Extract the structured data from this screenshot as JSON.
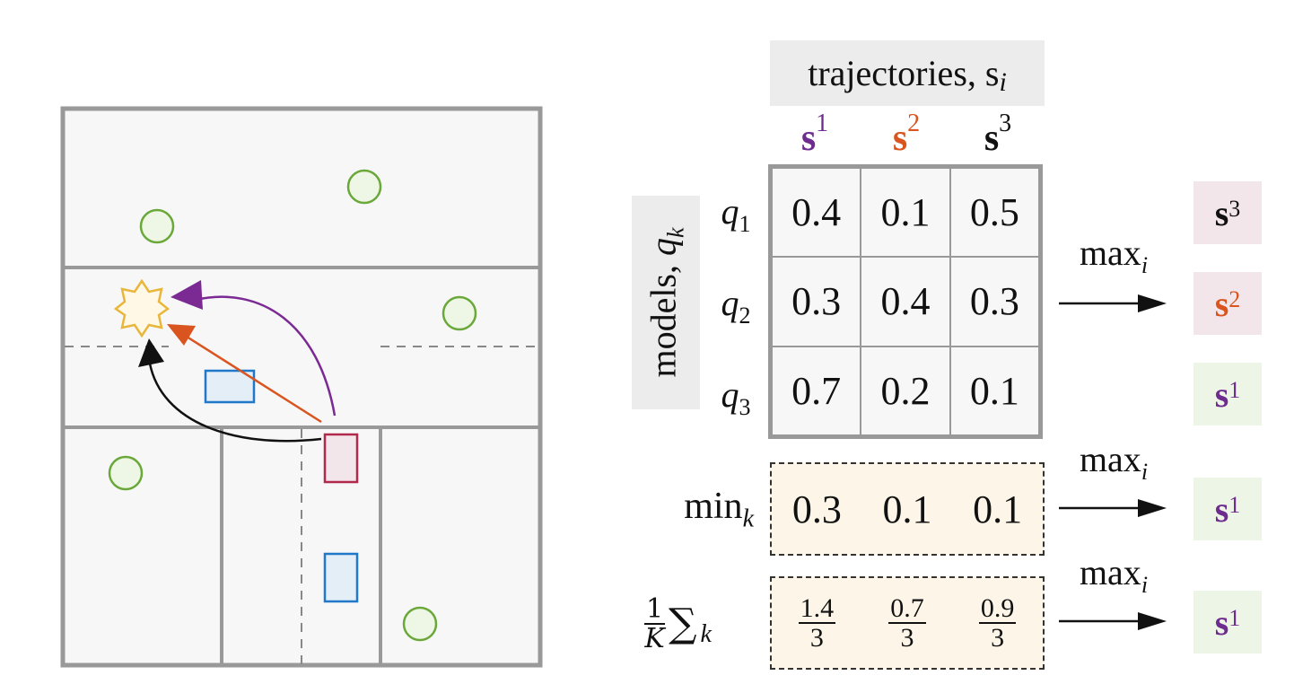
{
  "header": {
    "title": "trajectories, s",
    "sub": "i"
  },
  "columns": [
    {
      "base": "s",
      "sup": "1",
      "color": "#6e2c8e"
    },
    {
      "base": "s",
      "sup": "2",
      "color": "#d9541e"
    },
    {
      "base": "s",
      "sup": "3",
      "color": "#111111"
    }
  ],
  "models_label": {
    "text": "models, ",
    "var": "q",
    "sub": "k"
  },
  "rows": [
    {
      "var": "q",
      "sub": "1"
    },
    {
      "var": "q",
      "sub": "2"
    },
    {
      "var": "q",
      "sub": "3"
    }
  ],
  "matrix": [
    [
      "0.4",
      "0.1",
      "0.5"
    ],
    [
      "0.3",
      "0.4",
      "0.3"
    ],
    [
      "0.7",
      "0.2",
      "0.1"
    ]
  ],
  "min_row": {
    "label": "min",
    "sub": "k",
    "values": [
      "0.3",
      "0.1",
      "0.1"
    ]
  },
  "mean_row": {
    "frac_num": "1",
    "frac_den": "K",
    "sum": "∑",
    "sub": "k",
    "values": [
      {
        "num": "1.4",
        "den": "3"
      },
      {
        "num": "0.7",
        "den": "3"
      },
      {
        "num": "0.9",
        "den": "3"
      }
    ]
  },
  "max_label": {
    "text": "max",
    "sub": "i"
  },
  "results": {
    "per_model": [
      {
        "base": "s",
        "sup": "3",
        "color": "#111111",
        "bg": "#f3e6ea"
      },
      {
        "base": "s",
        "sup": "2",
        "color": "#d9541e",
        "bg": "#f3e6ea"
      },
      {
        "base": "s",
        "sup": "1",
        "color": "#6e2c8e",
        "bg": "#edf5e6"
      }
    ],
    "min": {
      "base": "s",
      "sup": "1",
      "color": "#6e2c8e",
      "bg": "#edf5e6"
    },
    "mean": {
      "base": "s",
      "sup": "1",
      "color": "#6e2c8e",
      "bg": "#edf5e6"
    }
  },
  "colors": {
    "wall": "#999999",
    "floor": "#f7f7f7",
    "goal_circle": "#6aa83a",
    "goal_fill": "#eef6e6",
    "obstacle_stroke": "#1f78c8",
    "obstacle_fill": "#e3eef7",
    "ego_stroke": "#b0284a",
    "ego_fill": "#f3e6ea",
    "star_stroke": "#e8b63a",
    "star_fill": "#fff8e6",
    "traj1": "#7b2a93",
    "traj2": "#d9541e",
    "traj3": "#111111"
  }
}
